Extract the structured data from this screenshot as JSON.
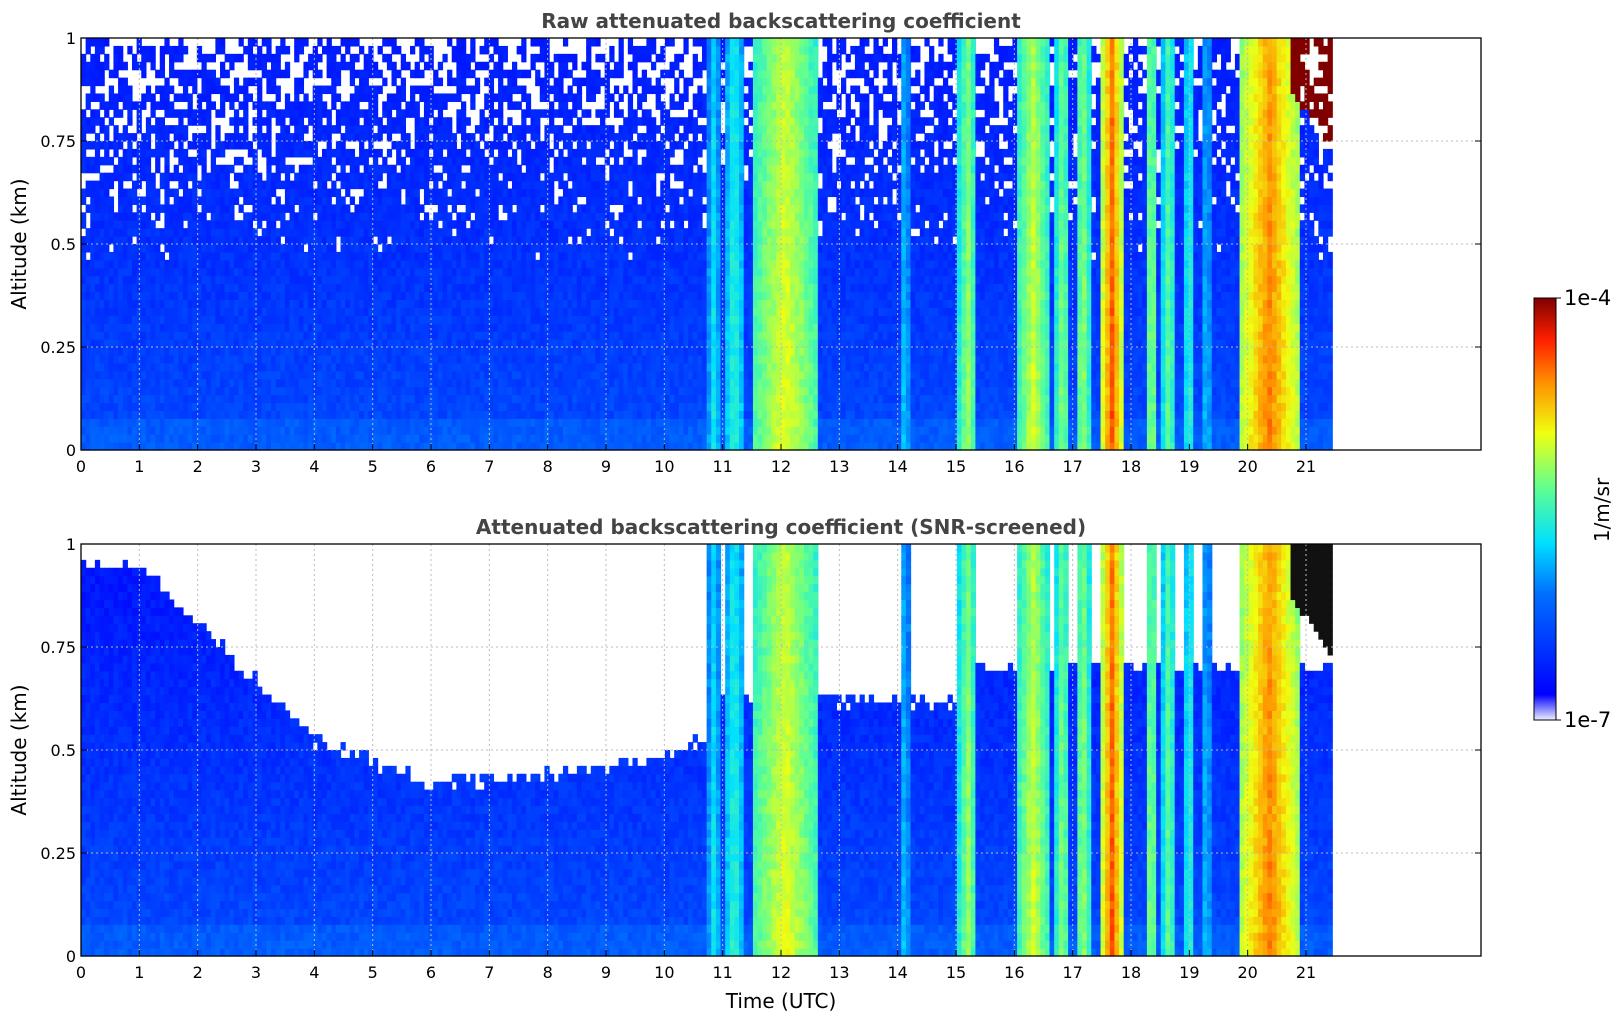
{
  "chart_data": [
    {
      "type": "heatmap",
      "title": "Raw attenuated backscattering coefficient",
      "xlabel": "",
      "ylabel": "Altitude (km)",
      "xlim": [
        0,
        24
      ],
      "ylim": [
        0,
        1
      ],
      "xticks": [
        "0",
        "1",
        "2",
        "3",
        "4",
        "5",
        "6",
        "7",
        "8",
        "9",
        "10",
        "11",
        "12",
        "13",
        "14",
        "15",
        "16",
        "17",
        "18",
        "19",
        "20",
        "21"
      ],
      "yticks": [
        "0",
        "0.25",
        "0.5",
        "0.75",
        "1"
      ],
      "grid": true,
      "data_end_time": 21.45,
      "screened": false
    },
    {
      "type": "heatmap",
      "title": "Attenuated backscattering coefficient (SNR-screened)",
      "xlabel": "Time (UTC)",
      "ylabel": "Altitude (km)",
      "xlim": [
        0,
        24
      ],
      "ylim": [
        0,
        1
      ],
      "xticks": [
        "0",
        "1",
        "2",
        "3",
        "4",
        "5",
        "6",
        "7",
        "8",
        "9",
        "10",
        "11",
        "12",
        "13",
        "14",
        "15",
        "16",
        "17",
        "18",
        "19",
        "20",
        "21"
      ],
      "yticks": [
        "0",
        "0.25",
        "0.5",
        "0.75",
        "1"
      ],
      "grid": true,
      "data_end_time": 21.45,
      "screened": true
    }
  ],
  "colorbar": {
    "label": "1/m/sr",
    "max_label": "1e-4",
    "min_label": "1e-7",
    "scale": "log",
    "colormap": "jet"
  },
  "cloud_bands": [
    {
      "start": 10.75,
      "end": 10.95,
      "level": 0.45
    },
    {
      "start": 11.05,
      "end": 11.35,
      "level": 0.5
    },
    {
      "start": 11.5,
      "end": 12.65,
      "level": 0.68
    },
    {
      "start": 14.05,
      "end": 14.2,
      "level": 0.42
    },
    {
      "start": 15.05,
      "end": 15.35,
      "level": 0.62
    },
    {
      "start": 16.05,
      "end": 16.6,
      "level": 0.66
    },
    {
      "start": 16.7,
      "end": 16.95,
      "level": 0.6
    },
    {
      "start": 17.05,
      "end": 17.3,
      "level": 0.62
    },
    {
      "start": 17.5,
      "end": 17.85,
      "level": 0.86
    },
    {
      "start": 18.25,
      "end": 18.45,
      "level": 0.62
    },
    {
      "start": 18.55,
      "end": 18.75,
      "level": 0.58
    },
    {
      "start": 18.9,
      "end": 19.1,
      "level": 0.5
    },
    {
      "start": 19.25,
      "end": 19.35,
      "level": 0.45
    },
    {
      "start": 19.85,
      "end": 20.9,
      "level": 0.82
    }
  ]
}
